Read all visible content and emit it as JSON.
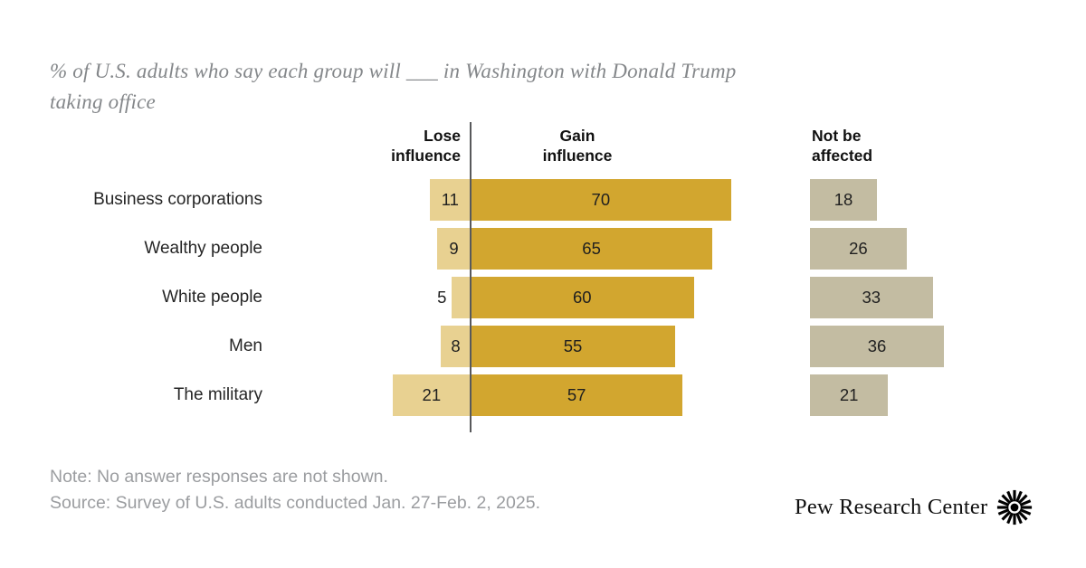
{
  "title": {
    "line1": "% of U.S. adults who say each group will ___ in Washington with Donald Trump",
    "line2": "taking office"
  },
  "headers": {
    "lose": "Lose\ninfluence",
    "gain": "Gain\ninfluence",
    "not_affected": "Not be\naffected"
  },
  "chart_data": {
    "type": "bar",
    "orientation": "horizontal-diverging",
    "title": "% of U.S. adults who say each group will ___ in Washington with Donald Trump taking office",
    "value_unit": "percent",
    "categories": [
      "Business corporations",
      "Wealthy people",
      "White people",
      "Men",
      "The military"
    ],
    "series": [
      {
        "name": "Lose influence",
        "values": [
          11,
          9,
          5,
          8,
          21
        ],
        "color": "#E8D191"
      },
      {
        "name": "Gain influence",
        "values": [
          70,
          65,
          60,
          55,
          57
        ],
        "color": "#D2A62F"
      },
      {
        "name": "Not be affected",
        "values": [
          18,
          26,
          33,
          36,
          21
        ],
        "color": "#C3BCA2"
      }
    ],
    "axis_line_at_zero": true,
    "legend_position": "column-headers",
    "grid": false,
    "xlim": [
      0,
      100
    ]
  },
  "colors": {
    "lose_bar": "#E8D191",
    "gain_bar": "#D2A62F",
    "not_affected_bar": "#C3BCA2",
    "axis_line": "#58595B",
    "title_text": "#84878A",
    "note_text": "#9B9DA0"
  },
  "footer": {
    "note": "Note: No answer responses are not shown.",
    "source": "Source: Survey of U.S. adults conducted Jan. 27-Feb. 2, 2025."
  },
  "branding": {
    "wordmark": "Pew Research Center",
    "logo_icon": "pew-sunburst-icon"
  }
}
